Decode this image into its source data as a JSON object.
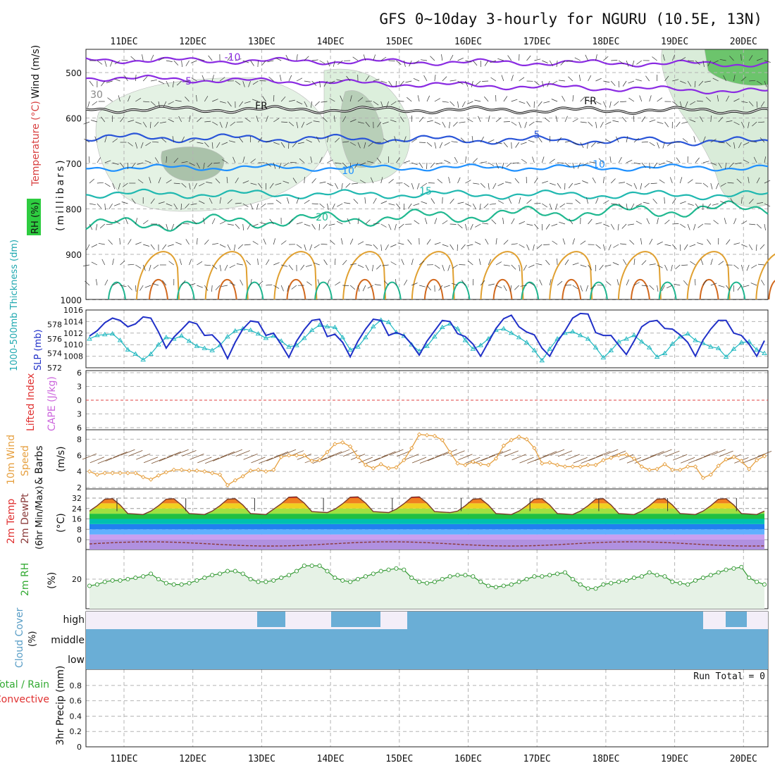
{
  "title": "GFS 0~10day 3-hourly for NGURU (10.5E, 13N)",
  "dates": [
    "11DEC",
    "12DEC",
    "13DEC",
    "14DEC",
    "15DEC",
    "16DEC",
    "17DEC",
    "18DEC",
    "19DEC",
    "20DEC"
  ],
  "run_total": "Run Total = 0",
  "colors": {
    "grid": "#b4b4b4",
    "temp_neg10": "#8a2be2",
    "temp_5": "#1f4fd0",
    "temp_10": "#1e90ff",
    "temp_15": "#20b2aa",
    "temp_20": "#1fb58f",
    "slp": "#2030c8",
    "thickness": "#20b8c0",
    "wind_speed": "#e6a040",
    "dewpoint": "#8a3a3a",
    "rh": "#339933",
    "cloud": "#6aaed6",
    "cloud_bg": "#f3eef8"
  },
  "panels": {
    "upper": {
      "labels": {
        "rh": "RH (%)",
        "temp": "Temperature (°C)",
        "wind": "Wind (m/s)",
        "unit": "(millibars)"
      },
      "y_ticks": [
        "500",
        "600",
        "700",
        "800",
        "900",
        "1000"
      ],
      "contour_labels": [
        "-10",
        "-5",
        "FR",
        "5",
        "10",
        "15",
        "20",
        "30",
        "FR",
        "5",
        "10"
      ]
    },
    "slp": {
      "labels": {
        "thickness": "1000-500mb Thickness (dm)",
        "slp": "SLP (mb)"
      },
      "left_ticks": [
        "578",
        "576",
        "574",
        "572"
      ],
      "right_ticks": [
        "1016",
        "1014",
        "1012",
        "1010",
        "1008"
      ]
    },
    "stability": {
      "labels": {
        "li": "Lifted Index",
        "cape": "CAPE (J/kg)"
      },
      "ticks": [
        "6",
        "3",
        "0",
        "3",
        "6"
      ]
    },
    "wind10": {
      "labels": {
        "a": "10m Wind",
        "b": "Speed",
        "c": "& Barbs",
        "unit": "(m/s)"
      },
      "ticks": [
        "8",
        "6",
        "4",
        "2"
      ]
    },
    "temp2m": {
      "labels": {
        "a": "2m Temp",
        "b": "2m DewPt",
        "c": "(6hr Min/Max)",
        "unit": "(°C)"
      },
      "ticks": [
        "32",
        "24",
        "16",
        "8",
        "0"
      ]
    },
    "rh2m": {
      "labels": {
        "a": "2m RH",
        "unit": "(%)"
      },
      "ticks": [
        "20"
      ]
    },
    "cloud": {
      "labels": {
        "a": "Cloud Cover",
        "unit": "(%)"
      },
      "levels": [
        "high",
        "middle",
        "low"
      ]
    },
    "precip": {
      "labels": {
        "a": "Total / Rain",
        "b": "Convective",
        "c": "3hr Precip (mm)"
      },
      "ticks": [
        "0.8",
        "0.6",
        "0.4",
        "0.2",
        "0"
      ]
    }
  },
  "chart_data": {
    "type": "line",
    "title": "GFS 0~10day 3-hourly for NGURU (10.5E, 13N)",
    "x_start": "10DEC 12Z",
    "x_step_hours": 3,
    "series": [
      {
        "name": "SLP (mb)",
        "values": [
          1011.5,
          1012.4,
          1013.8,
          1014.6,
          1014.2,
          1013.1,
          1013.6,
          1014.8,
          1014.6,
          1012.2,
          1009.4,
          1011.3,
          1012.6,
          1014.0,
          1013.6,
          1011.6,
          1011.7,
          1010.3,
          1007.6,
          1010.4,
          1012.7,
          1014.1,
          1013.9,
          1011.6,
          1012.0,
          1010.0,
          1007.8,
          1010.6,
          1012.6,
          1014.2,
          1014.4,
          1011.4,
          1011.8,
          1010.4,
          1007.9,
          1010.6,
          1012.7,
          1014.4,
          1014.2,
          1011.6,
          1012.1,
          1011.6,
          1010.1,
          1008.2,
          1010.6,
          1012.4,
          1014.2,
          1014.0,
          1011.9,
          1011.4,
          1010.1,
          1008.0,
          1010.4,
          1012.8,
          1014.5,
          1015.1,
          1013.1,
          1012.2,
          1011.7,
          1009.4,
          1008.0,
          1010.5,
          1012.4,
          1014.6,
          1015.4,
          1015.3,
          1012.1,
          1011.6,
          1011.6,
          1009.9,
          1008.3,
          1010.6,
          1013.1,
          1014.0,
          1014.2,
          1012.8,
          1012.7,
          1011.7,
          1010.4,
          1008.0,
          1010.8,
          1012.7,
          1014.2,
          1014.2,
          1012.0,
          1011.6,
          1010.1,
          1008.0,
          1010.7
        ]
      },
      {
        "name": "1000-500mb Thickness (dm)",
        "values": [
          576.0,
          576.5,
          576.6,
          576.7,
          575.8,
          574.5,
          573.9,
          573.1,
          573.9,
          575.2,
          576.2,
          576.0,
          576.4,
          575.7,
          575.0,
          574.7,
          574.4,
          575.1,
          576.3,
          577.1,
          577.4,
          577.2,
          576.7,
          576.1,
          576.4,
          575.7,
          574.9,
          575.1,
          576.1,
          577.2,
          577.9,
          577.7,
          577.6,
          576.2,
          574.5,
          574.9,
          576.2,
          577.7,
          578.6,
          578.3,
          576.9,
          576.4,
          575.2,
          574.3,
          575.0,
          576.3,
          577.6,
          578.1,
          577.4,
          575.8,
          574.6,
          575.1,
          576.0,
          577.2,
          577.4,
          576.8,
          576.2,
          575.5,
          574.4,
          573.0,
          574.6,
          576.0,
          576.8,
          577.0,
          576.5,
          576.0,
          574.8,
          573.4,
          574.4,
          575.6,
          576.0,
          576.5,
          575.6,
          574.8,
          573.5,
          574.0,
          575.3,
          576.3,
          576.7,
          575.8,
          575.4,
          574.9,
          574.7,
          573.5,
          574.6,
          575.5,
          575.6,
          574.5,
          574.0
        ]
      },
      {
        "name": "10m Wind Speed (m/s)",
        "values": [
          4.0,
          3.6,
          3.8,
          3.8,
          3.8,
          3.8,
          3.8,
          3.3,
          3.0,
          3.5,
          3.9,
          4.2,
          4.2,
          4.1,
          4.1,
          4.0,
          3.8,
          3.6,
          2.3,
          2.9,
          3.4,
          4.1,
          4.2,
          4.0,
          4.2,
          5.8,
          6.0,
          6.0,
          6.0,
          5.3,
          5.4,
          6.4,
          7.4,
          7.6,
          7.1,
          5.8,
          4.8,
          4.4,
          4.9,
          4.4,
          4.5,
          5.4,
          6.9,
          8.6,
          8.5,
          8.4,
          7.9,
          6.4,
          5.0,
          4.8,
          5.2,
          4.9,
          4.8,
          5.6,
          7.2,
          7.9,
          8.3,
          8.0,
          6.9,
          5.0,
          5.1,
          4.8,
          4.6,
          4.6,
          4.6,
          4.8,
          4.8,
          5.4,
          5.7,
          6.0,
          6.1,
          5.6,
          4.6,
          4.2,
          4.3,
          4.9,
          4.2,
          4.2,
          4.6,
          4.6,
          3.2,
          3.6,
          4.7,
          5.5,
          5.8,
          5.3,
          4.3,
          5.4,
          5.9
        ]
      },
      {
        "name": "2m RH (%)",
        "values": [
          15,
          16,
          18,
          19,
          19,
          20,
          21,
          22,
          24,
          20,
          17,
          16,
          16,
          17,
          19,
          21,
          23,
          24,
          26,
          26,
          24,
          20,
          18,
          18,
          19,
          21,
          23,
          26,
          30,
          30,
          30,
          26,
          21,
          19,
          18,
          20,
          22,
          24,
          26,
          27,
          28,
          27,
          21,
          18,
          17,
          18,
          20,
          22,
          23,
          23,
          22,
          18,
          15,
          14,
          15,
          16,
          18,
          20,
          22,
          22,
          23,
          24,
          25,
          20,
          16,
          13,
          13,
          16,
          17,
          18,
          19,
          21,
          22,
          25,
          23,
          22,
          18,
          17,
          16,
          19,
          21,
          23,
          25,
          27,
          28,
          29,
          21,
          18,
          16
        ]
      }
    ],
    "precip_total_mm": 0,
    "ylim": {
      "slp": [
        1006,
        1016
      ],
      "thickness": [
        572,
        580
      ],
      "wind": [
        2,
        9
      ],
      "rh": [
        0,
        40
      ],
      "precip": [
        0,
        1
      ]
    }
  }
}
